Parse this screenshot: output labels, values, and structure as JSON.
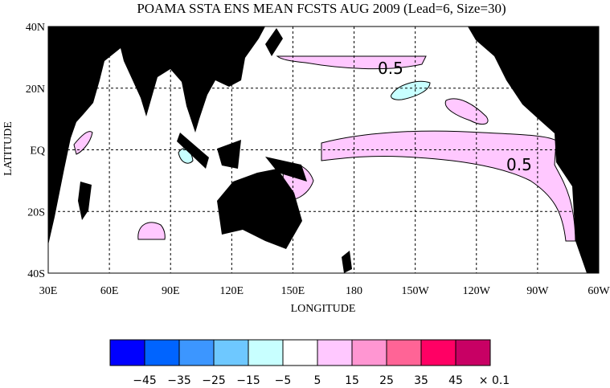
{
  "title": "POAMA SSTA ENS MEAN FCSTS AUG 2009 (Lead=6, Size=30)",
  "xaxis": {
    "label": "LONGITUDE",
    "ticks": [
      "30E",
      "60E",
      "90E",
      "120E",
      "150E",
      "180",
      "150W",
      "120W",
      "90W",
      "60W"
    ]
  },
  "yaxis": {
    "label": "LATITUDE",
    "ticks": [
      "40N",
      "20N",
      "EQ",
      "20S",
      "40S"
    ]
  },
  "contour_labels": [
    "0.5",
    "0.5"
  ],
  "colorbar": {
    "colors": [
      "#0000ff",
      "#0064ff",
      "#3c96ff",
      "#6ec8ff",
      "#c8ffff",
      "#ffffff",
      "#ffc8ff",
      "#ff96d2",
      "#ff6496",
      "#ff0064",
      "#c80064"
    ],
    "labels": [
      "−45",
      "−35",
      "−25",
      "−15",
      "−5",
      "5",
      "15",
      "25",
      "35",
      "45"
    ],
    "unit": "× 0.1"
  }
}
